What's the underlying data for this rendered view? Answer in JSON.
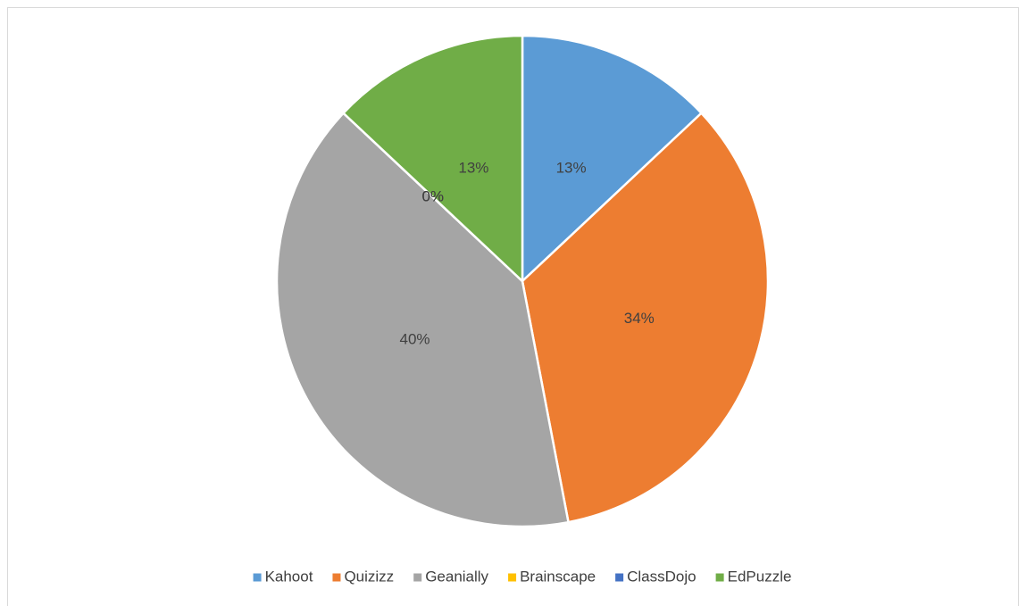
{
  "chart_data": {
    "type": "pie",
    "categories": [
      "Kahoot",
      "Quizizz",
      "Geanially",
      "Brainscape",
      "ClassDojo",
      "EdPuzzle"
    ],
    "values": [
      13,
      34,
      40,
      0,
      0,
      13
    ],
    "value_labels": [
      "13%",
      "34%",
      "40%",
      "0%",
      "0%",
      "13%"
    ],
    "colors": [
      "#5b9bd5",
      "#ed7d31",
      "#a5a5a5",
      "#ffc000",
      "#4472c4",
      "#70ad47"
    ],
    "legend": "bottom"
  }
}
